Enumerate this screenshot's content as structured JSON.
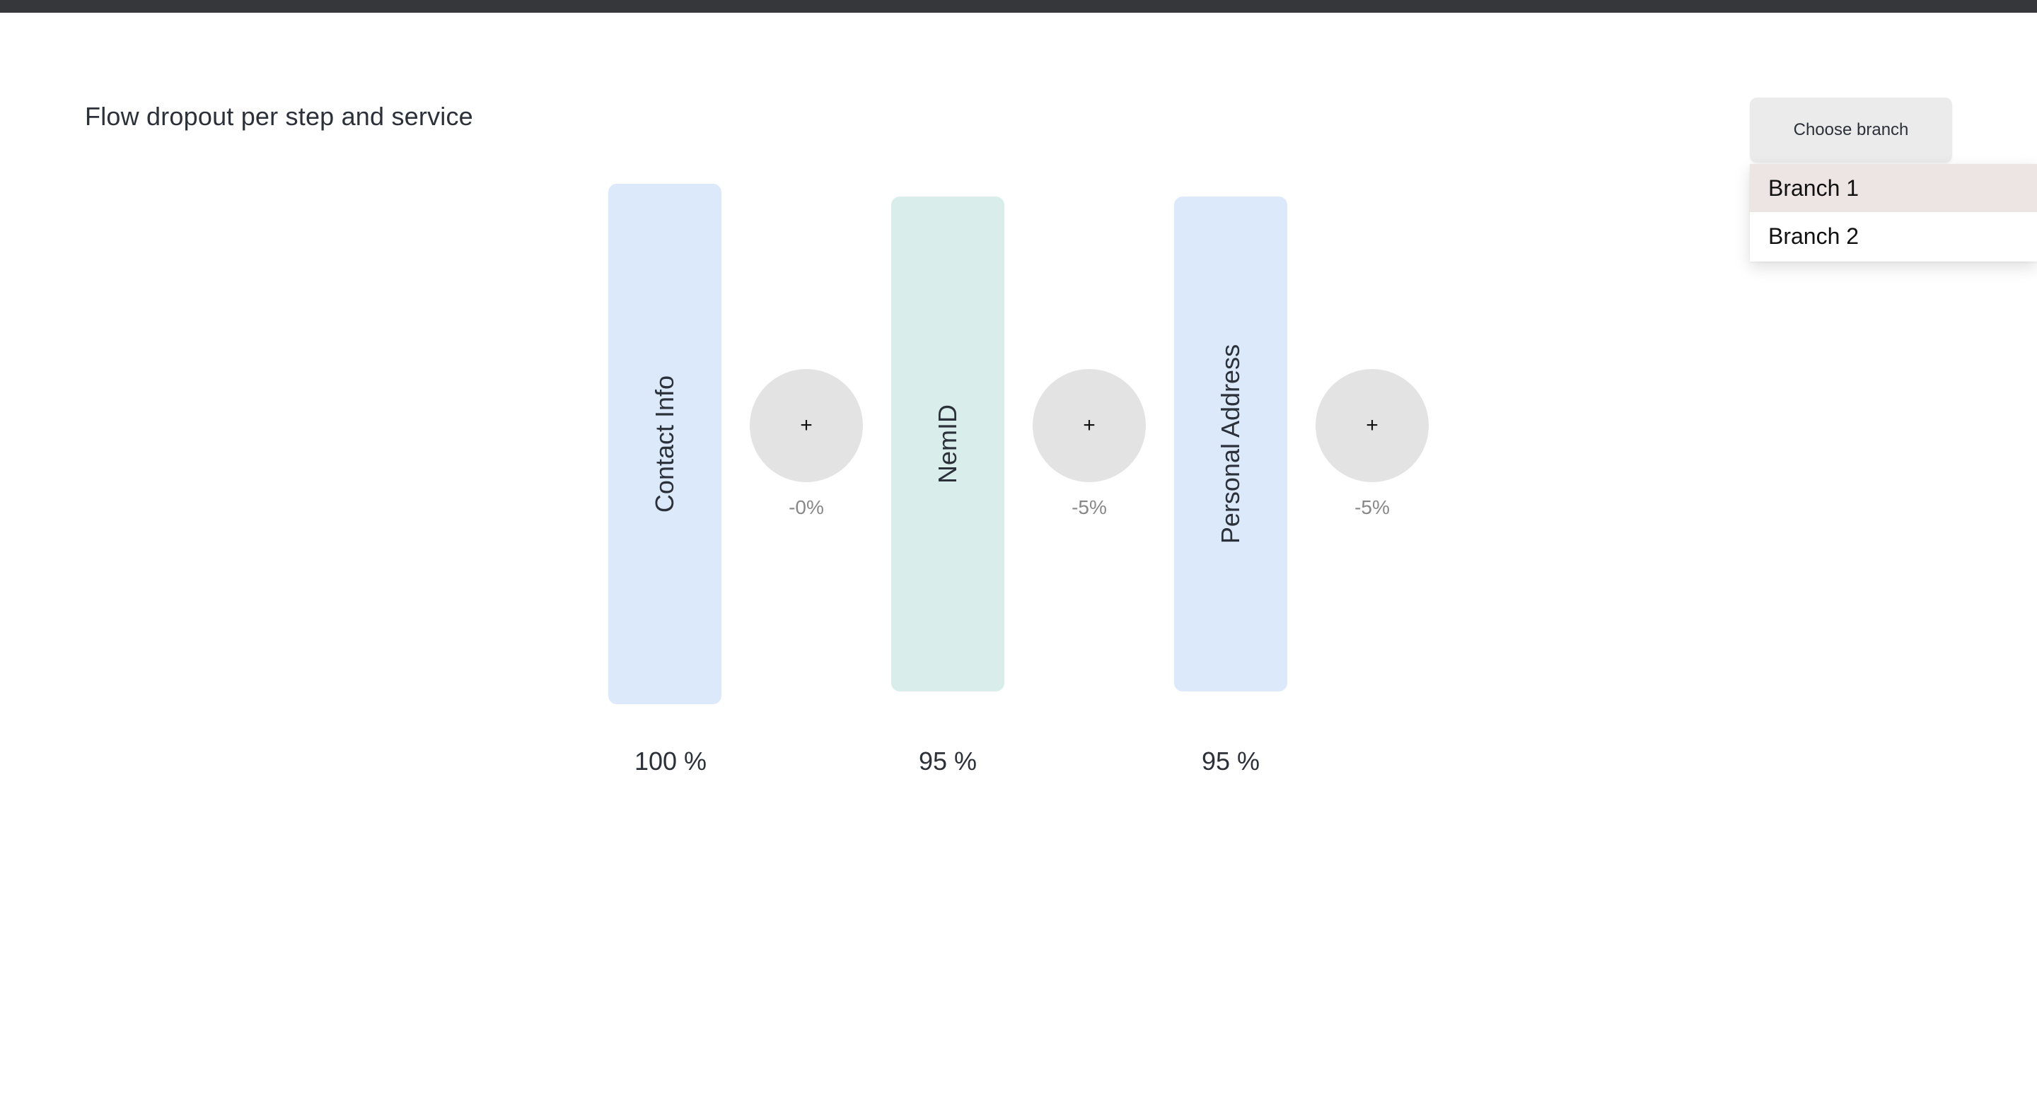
{
  "page": {
    "title": "Flow dropout per step and service"
  },
  "branch_selector": {
    "button_label": "Choose branch",
    "options": [
      "Branch 1",
      "Branch 2"
    ],
    "highlighted_option": "Branch 1"
  },
  "steps": [
    {
      "label": "Contact Info",
      "percent_label": "100 %",
      "color": "#dce9fb"
    },
    {
      "label": "NemID",
      "percent_label": "95 %",
      "color": "#d9eeeb"
    },
    {
      "label": "Personal Address",
      "percent_label": "95 %",
      "color": "#dce9fb"
    }
  ],
  "connectors": [
    {
      "icon": "plus-icon",
      "symbol": "+",
      "dropout_label": "-0%"
    },
    {
      "icon": "plus-icon",
      "symbol": "+",
      "dropout_label": "-5%"
    },
    {
      "icon": "plus-icon",
      "symbol": "+",
      "dropout_label": "-5%"
    }
  ]
}
